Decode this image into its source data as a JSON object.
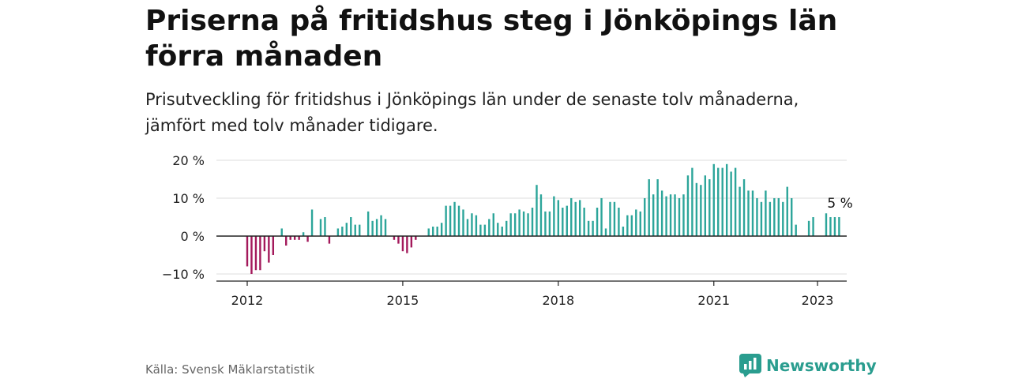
{
  "title": "Priserna på fritidshus steg i Jönköpings län förra månaden",
  "subtitle": "Prisutveckling för fritidshus i Jönköpings län under de senaste tolv månaderna, jämfört med tolv månader tidigare.",
  "source": "Källa: Svensk Mäklarstatistik",
  "brand": "Newsworthy",
  "colors": {
    "positive": "#2ca59a",
    "negative": "#a3195b",
    "brand": "#2a9d8f",
    "grid": "#dddddd",
    "zero_line": "#222222"
  },
  "chart_data": {
    "type": "bar",
    "title": "Priserna på fritidshus steg i Jönköpings län förra månaden",
    "subtitle": "Prisutveckling för fritidshus i Jönköpings län under de senaste tolv månaderna, jämfört med tolv månader tidigare.",
    "xlabel": "",
    "ylabel": "",
    "unit": "%",
    "start": "2012-01",
    "frequency": "monthly",
    "ylim": [
      -12,
      22
    ],
    "y_ticks": [
      20,
      10,
      0,
      -10
    ],
    "y_tick_labels": [
      "20 %",
      "10 %",
      "0 %",
      "−10 %"
    ],
    "x_ticks": [
      "2012",
      "2015",
      "2018",
      "2021",
      "2023"
    ],
    "grid": true,
    "annotation": "5 %",
    "values": [
      -8,
      -10,
      -9,
      -9,
      -4,
      -7,
      -5,
      null,
      2,
      -2.5,
      -1,
      -1,
      -1,
      1,
      -1.5,
      7,
      null,
      4.5,
      5,
      -2,
      null,
      2,
      2.5,
      3.5,
      5,
      3,
      3,
      null,
      6.5,
      4,
      4.5,
      5.5,
      4.5,
      null,
      -1,
      -2,
      -4,
      -4.5,
      -3,
      -1,
      null,
      null,
      2,
      2.5,
      2.5,
      3.5,
      8,
      8,
      9,
      8,
      7,
      4.5,
      6,
      5.5,
      3,
      3,
      4.5,
      6,
      3.5,
      2.5,
      4,
      6,
      6,
      7,
      6.5,
      6,
      7.5,
      13.5,
      11,
      6.5,
      6.5,
      10.5,
      9.5,
      7.5,
      8,
      10,
      9,
      9.5,
      7.5,
      4,
      4,
      7.5,
      10,
      2,
      9,
      9,
      7.5,
      2.5,
      5.5,
      5.5,
      7,
      6.5,
      10,
      15,
      11,
      15,
      12,
      10.5,
      11,
      11,
      10,
      11,
      16,
      18,
      14,
      13.5,
      16,
      15,
      19,
      18,
      18,
      19,
      17,
      18,
      13,
      15,
      12,
      12,
      10,
      9,
      12,
      9,
      10,
      10,
      9,
      13,
      10,
      3,
      null,
      null,
      4,
      5,
      null,
      null,
      6,
      5,
      5,
      5
    ]
  }
}
